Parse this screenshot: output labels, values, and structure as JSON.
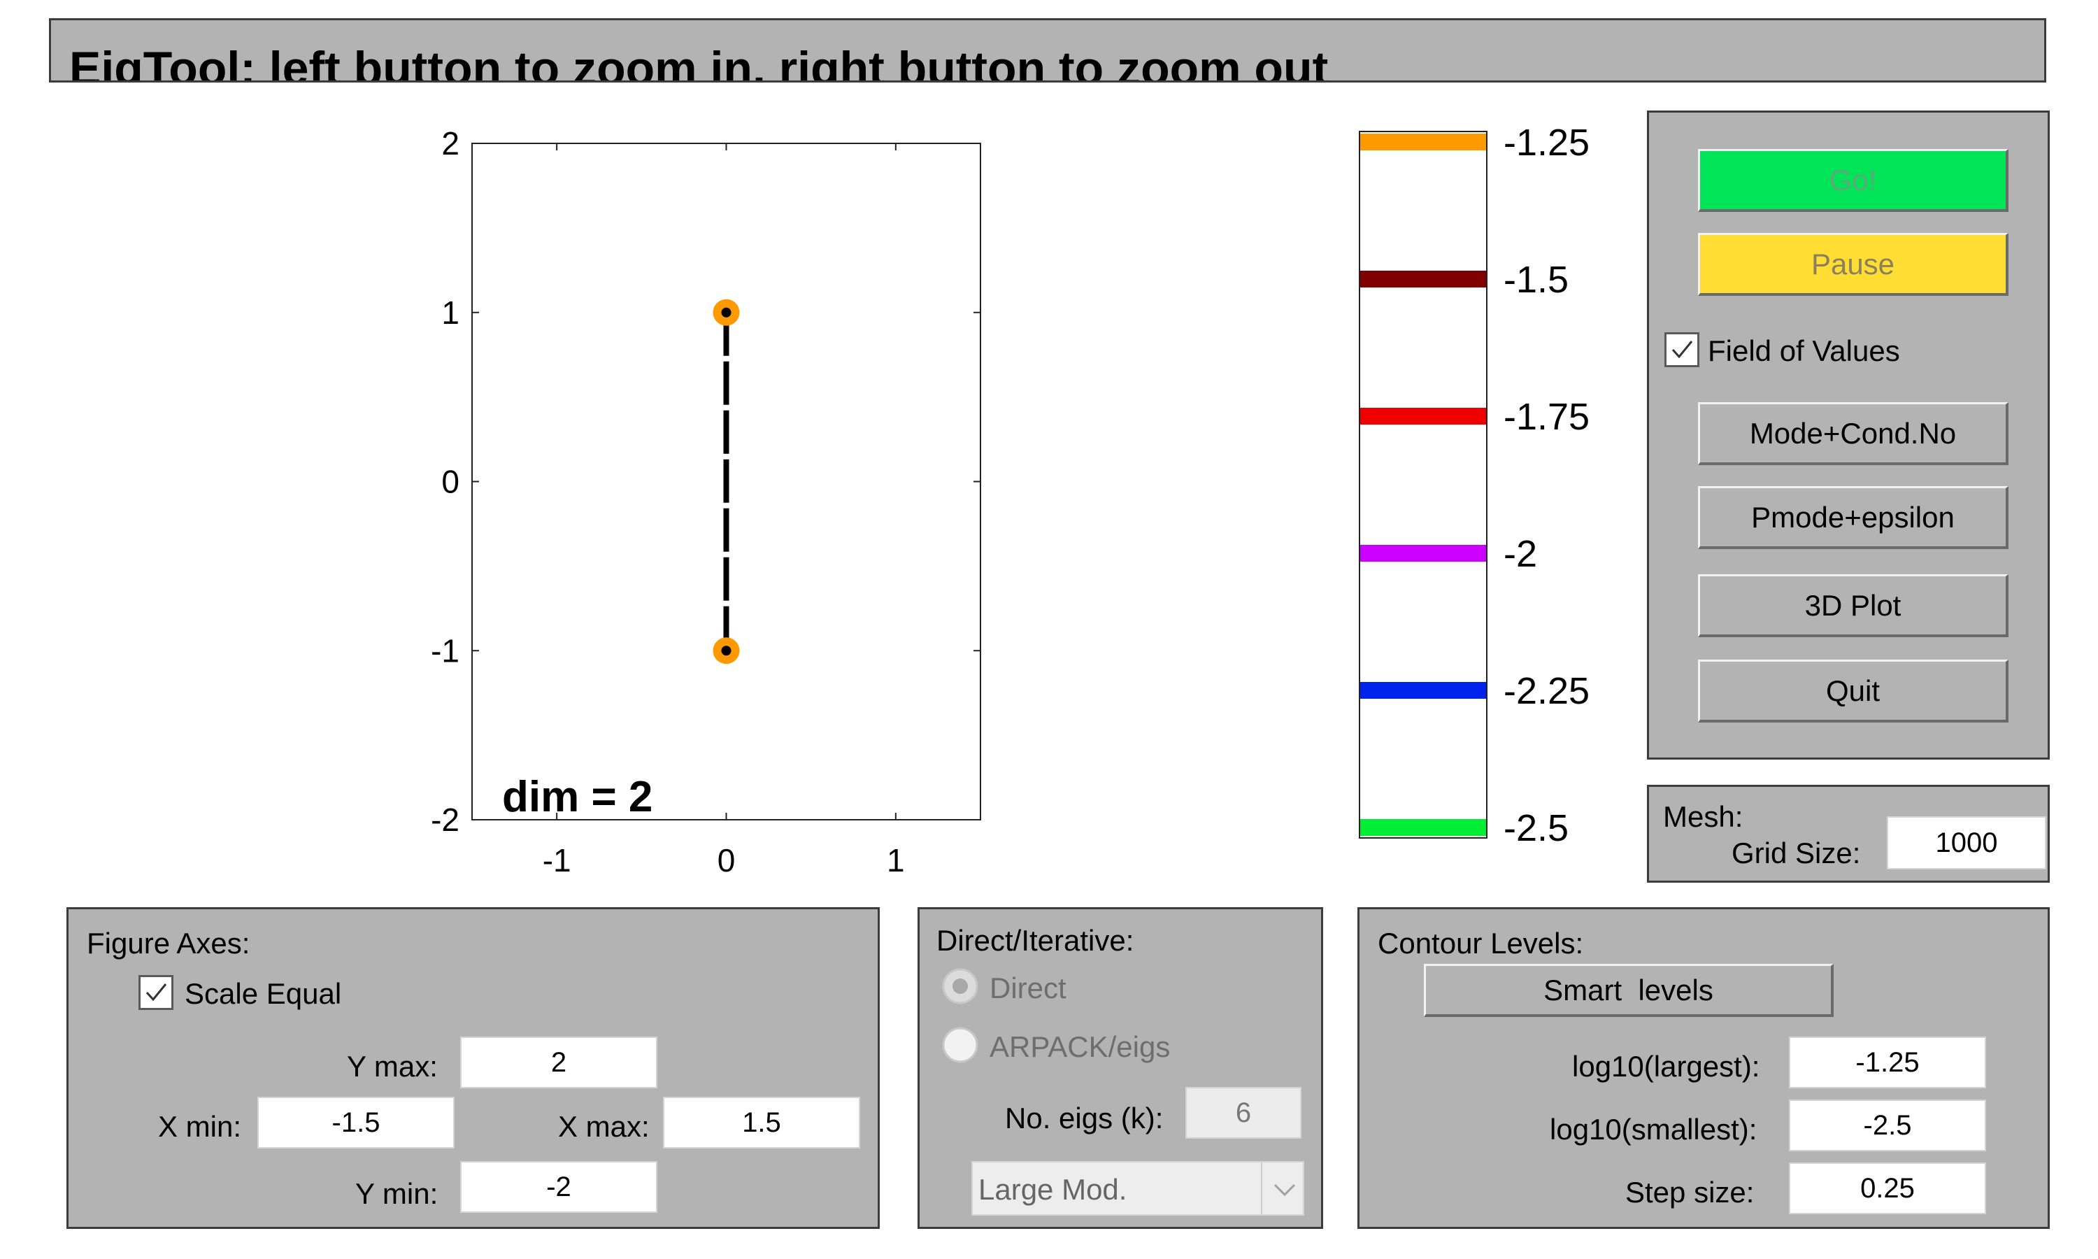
{
  "window": {
    "title": "EigTool: left button to zoom in, right button to zoom out"
  },
  "plot": {
    "ytick_labels": [
      "2",
      "1",
      "0",
      "-1",
      "-2"
    ],
    "xtick_labels": [
      "-1",
      "0",
      "1"
    ],
    "annotation": "dim = 2",
    "xlim": [
      -1.5,
      1.5
    ],
    "ylim": [
      -2,
      2
    ],
    "eigenvalues": [
      [
        0,
        1
      ],
      [
        0,
        -1
      ]
    ],
    "field_of_values": {
      "x": 0,
      "y": [
        -1,
        1
      ]
    }
  },
  "colorbar": {
    "levels": [
      {
        "label": "-1.25",
        "value": -1.25,
        "color": "#ff9900"
      },
      {
        "label": "-1.5",
        "value": -1.5,
        "color": "#800000"
      },
      {
        "label": "-1.75",
        "value": -1.75,
        "color": "#ee0000"
      },
      {
        "label": "-2",
        "value": -2,
        "color": "#cc00ff"
      },
      {
        "label": "-2.25",
        "value": -2.25,
        "color": "#0022ee"
      },
      {
        "label": "-2.5",
        "value": -2.5,
        "color": "#00ee33"
      }
    ]
  },
  "controls": {
    "go_label": "Go!",
    "pause_label": "Pause",
    "field_of_values_label": "Field of Values",
    "field_of_values_checked": true,
    "mode_cond_label": "Mode+Cond.No",
    "pmode_eps_label": "Pmode+epsilon",
    "plot3d_label": "3D Plot",
    "quit_label": "Quit",
    "go_color": "#00e457",
    "pause_color": "#ffdd33"
  },
  "mesh": {
    "title": "Mesh:",
    "grid_size_label": "Grid Size:",
    "grid_size_value": "1000"
  },
  "figure_axes": {
    "title": "Figure Axes:",
    "scale_equal_label": "Scale Equal",
    "scale_equal_checked": true,
    "ymax_label": "Y max:",
    "ymax_value": "2",
    "xmin_label": "X min:",
    "xmin_value": "-1.5",
    "xmax_label": "X max:",
    "xmax_value": "1.5",
    "ymin_label": "Y min:",
    "ymin_value": "-2"
  },
  "direct_iterative": {
    "title": "Direct/Iterative:",
    "direct_label": "Direct",
    "arpack_label": "ARPACK/eigs",
    "neigs_label": "No. eigs (k):",
    "neigs_value": "6",
    "which_selected": "Large Mod."
  },
  "contour_levels": {
    "title": "Contour Levels:",
    "smart_levels_label": "Smart  levels",
    "largest_label": "log10(largest):",
    "largest_value": "-1.25",
    "smallest_label": "log10(smallest):",
    "smallest_value": "-2.5",
    "step_label": "Step size:",
    "step_value": "0.25"
  }
}
